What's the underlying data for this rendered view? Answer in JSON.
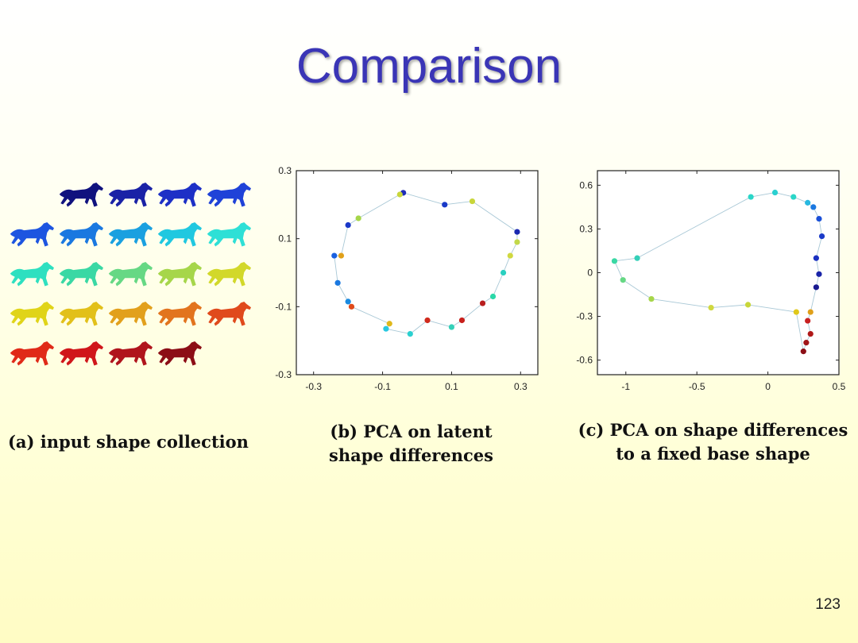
{
  "slide": {
    "title": "Comparison",
    "page_number": "123"
  },
  "captions": {
    "a": "(a) input shape collection",
    "b_line1": "(b) PCA on latent",
    "b_line2": "shape differences",
    "c_line1": "(c) PCA on shape differences",
    "c_line2": "to a fixed base shape"
  },
  "horse_collection": {
    "rows": [
      [
        "#10127e",
        "#1a22a6",
        "#1d30c6",
        "#1f42d8"
      ],
      [
        "#1d55e0",
        "#1a78e0",
        "#1aa0e0",
        "#20c8e0",
        "#2ee0d6"
      ],
      [
        "#2ee0c0",
        "#3ad8a4",
        "#66d884",
        "#a6d64a",
        "#d2d82a"
      ],
      [
        "#e0d418",
        "#e2c01a",
        "#e2a01c",
        "#e2741e",
        "#e04a1c"
      ],
      [
        "#e02a18",
        "#d0161a",
        "#b0141c",
        "#8c0e16"
      ]
    ],
    "row_offsets": [
      1,
      0,
      0,
      0,
      0
    ]
  },
  "chart_data": [
    {
      "type": "scatter",
      "id": "b",
      "title": "(b) PCA on latent shape differences",
      "xlim": [
        -0.35,
        0.35
      ],
      "ylim": [
        -0.3,
        0.3
      ],
      "x_ticks": [
        "-0.3",
        "-0.1",
        "0.1",
        "0.3"
      ],
      "x_tick_values": [
        -0.3,
        -0.1,
        0.1,
        0.3
      ],
      "y_ticks": [
        "0.3",
        "0.1",
        "-0.1",
        "-0.3"
      ],
      "y_tick_values": [
        0.3,
        0.1,
        -0.1,
        -0.3
      ],
      "connected": true,
      "points": [
        {
          "x": -0.04,
          "y": 0.235,
          "color": "#1e2cb8"
        },
        {
          "x": 0.08,
          "y": 0.2,
          "color": "#1a3ac8"
        },
        {
          "x": 0.16,
          "y": 0.21,
          "color": "#c8d63a"
        },
        {
          "x": 0.29,
          "y": 0.12,
          "color": "#1a28b0"
        },
        {
          "x": 0.29,
          "y": 0.09,
          "color": "#c2d84a"
        },
        {
          "x": 0.27,
          "y": 0.05,
          "color": "#d0d840"
        },
        {
          "x": 0.25,
          "y": 0.0,
          "color": "#2ad0c0"
        },
        {
          "x": 0.22,
          "y": -0.07,
          "color": "#2ad8a8"
        },
        {
          "x": 0.19,
          "y": -0.09,
          "color": "#b81e1e"
        },
        {
          "x": 0.13,
          "y": -0.14,
          "color": "#c8201c"
        },
        {
          "x": 0.1,
          "y": -0.16,
          "color": "#34d0b8"
        },
        {
          "x": 0.03,
          "y": -0.14,
          "color": "#d02a1c"
        },
        {
          "x": -0.02,
          "y": -0.18,
          "color": "#2ad0d0"
        },
        {
          "x": -0.09,
          "y": -0.165,
          "color": "#28c8e0"
        },
        {
          "x": -0.08,
          "y": -0.15,
          "color": "#e0b81a"
        },
        {
          "x": -0.19,
          "y": -0.1,
          "color": "#e04a1a"
        },
        {
          "x": -0.2,
          "y": -0.085,
          "color": "#1a8ae0"
        },
        {
          "x": -0.23,
          "y": -0.03,
          "color": "#1a78e0"
        },
        {
          "x": -0.24,
          "y": 0.05,
          "color": "#1a60e0"
        },
        {
          "x": -0.22,
          "y": 0.05,
          "color": "#e0a01a"
        },
        {
          "x": -0.2,
          "y": 0.14,
          "color": "#1a38c8"
        },
        {
          "x": -0.17,
          "y": 0.16,
          "color": "#a6d64a"
        },
        {
          "x": -0.05,
          "y": 0.23,
          "color": "#c8d63a"
        }
      ]
    },
    {
      "type": "scatter",
      "id": "c",
      "title": "(c) PCA on shape differences to a fixed base shape",
      "xlim": [
        -1.2,
        0.5
      ],
      "ylim": [
        -0.7,
        0.7
      ],
      "x_ticks": [
        "-1",
        "-0.5",
        "0",
        "0.5"
      ],
      "x_tick_values": [
        -1,
        -0.5,
        0,
        0.5
      ],
      "y_ticks": [
        "0.6",
        "0.3",
        "0",
        "-0.3",
        "-0.6"
      ],
      "y_tick_values": [
        0.6,
        0.3,
        0,
        -0.3,
        -0.6
      ],
      "connected": true,
      "points": [
        {
          "x": 0.05,
          "y": 0.55,
          "color": "#2ad0d0"
        },
        {
          "x": 0.18,
          "y": 0.52,
          "color": "#2ad6c8"
        },
        {
          "x": 0.28,
          "y": 0.48,
          "color": "#28b8e0"
        },
        {
          "x": 0.32,
          "y": 0.45,
          "color": "#1a78e0"
        },
        {
          "x": 0.36,
          "y": 0.37,
          "color": "#1a50d8"
        },
        {
          "x": 0.38,
          "y": 0.25,
          "color": "#1a3ac8"
        },
        {
          "x": 0.34,
          "y": 0.1,
          "color": "#1a30c0"
        },
        {
          "x": 0.36,
          "y": -0.01,
          "color": "#1a24a8"
        },
        {
          "x": 0.34,
          "y": -0.1,
          "color": "#1a1a90"
        },
        {
          "x": 0.3,
          "y": -0.27,
          "color": "#e0a01a"
        },
        {
          "x": 0.28,
          "y": -0.33,
          "color": "#c82020"
        },
        {
          "x": 0.3,
          "y": -0.42,
          "color": "#b01818"
        },
        {
          "x": 0.27,
          "y": -0.48,
          "color": "#a01418"
        },
        {
          "x": 0.25,
          "y": -0.54,
          "color": "#8c0e16"
        },
        {
          "x": 0.2,
          "y": -0.27,
          "color": "#e0c81a"
        },
        {
          "x": -0.14,
          "y": -0.22,
          "color": "#c8d63a"
        },
        {
          "x": -0.4,
          "y": -0.24,
          "color": "#d0d840"
        },
        {
          "x": -0.82,
          "y": -0.18,
          "color": "#a6d64a"
        },
        {
          "x": -1.02,
          "y": -0.05,
          "color": "#66d884"
        },
        {
          "x": -1.08,
          "y": 0.08,
          "color": "#3ad8a4"
        },
        {
          "x": -0.92,
          "y": 0.1,
          "color": "#34d0b8"
        },
        {
          "x": -0.12,
          "y": 0.52,
          "color": "#2ad6c8"
        }
      ]
    }
  ]
}
